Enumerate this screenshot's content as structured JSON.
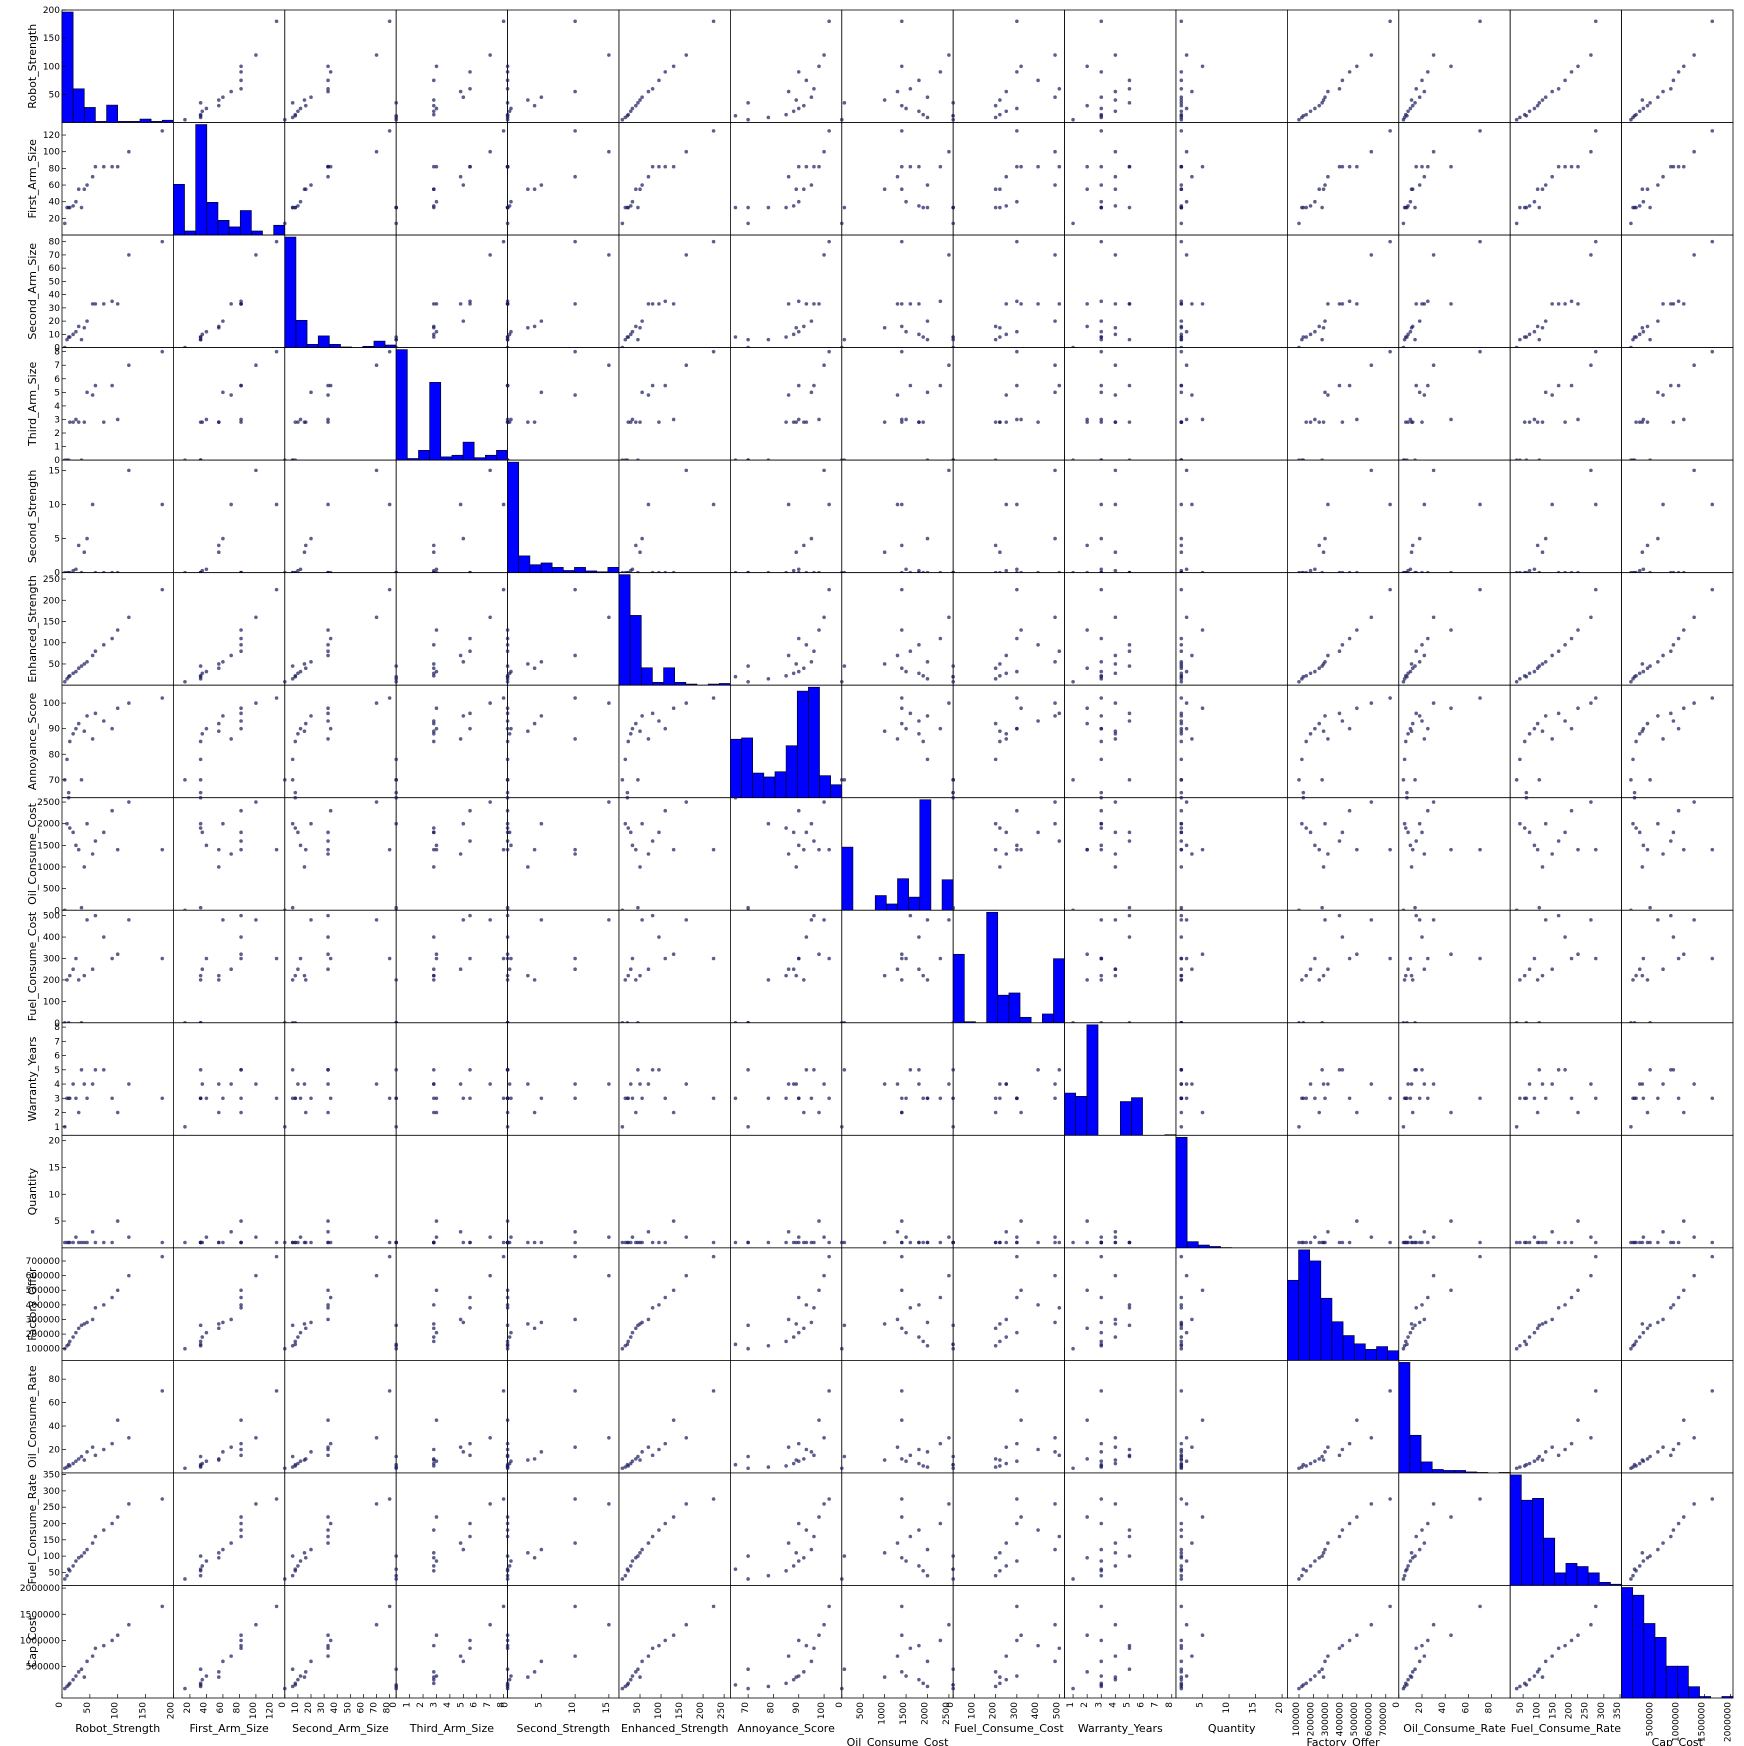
{
  "chart_data": {
    "type": "scatter",
    "subtype": "scatter_matrix",
    "diagonal": "histogram",
    "point_color": "#1a1a5e",
    "bar_color": "#0000ff",
    "variables": [
      {
        "name": "Robot_Strength",
        "range": [
          0,
          200
        ],
        "yticks": [
          50,
          100,
          150,
          200
        ],
        "xticks": [
          0,
          50,
          100,
          150,
          200
        ]
      },
      {
        "name": "First_Arm_Size",
        "range": [
          0,
          135
        ],
        "yticks": [
          20,
          40,
          60,
          80,
          100,
          120
        ],
        "xticks": [
          20,
          40,
          60,
          80,
          100,
          120
        ]
      },
      {
        "name": "Second_Arm_Size",
        "range": [
          0,
          85
        ],
        "yticks": [
          0,
          10,
          20,
          30,
          40,
          50,
          60,
          70,
          80
        ],
        "xticks": [
          0,
          10,
          20,
          30,
          40,
          50,
          60,
          70,
          80
        ]
      },
      {
        "name": "Third_Arm_Size",
        "range": [
          0,
          8.3
        ],
        "yticks": [
          0,
          1,
          2,
          3,
          4,
          5,
          6,
          7,
          8
        ],
        "xticks": [
          0,
          1,
          2,
          3,
          4,
          5,
          6,
          7,
          8
        ]
      },
      {
        "name": "Second_Strength",
        "range": [
          0,
          16.5
        ],
        "yticks": [
          0,
          5,
          10,
          15
        ],
        "xticks": [
          0,
          5,
          10,
          15
        ]
      },
      {
        "name": "Enhanced_Strength",
        "range": [
          0,
          265
        ],
        "yticks": [
          50,
          100,
          150,
          200,
          250
        ],
        "xticks": [
          50,
          100,
          150,
          200,
          250
        ]
      },
      {
        "name": "Annoyance_Score",
        "range": [
          63,
          107
        ],
        "yticks": [
          70,
          80,
          90,
          100
        ],
        "xticks": [
          70,
          80,
          90,
          100
        ]
      },
      {
        "name": "Oil_Consume_Cost",
        "range": [
          0,
          2600
        ],
        "yticks": [
          0,
          500,
          1000,
          1500,
          2000,
          2500
        ],
        "xticks": [
          0,
          500,
          1000,
          1500,
          2000,
          2500
        ]
      },
      {
        "name": "Fuel_Consume_Cost",
        "range": [
          0,
          525
        ],
        "yticks": [
          0,
          100,
          200,
          300,
          400,
          500
        ],
        "xticks": [
          0,
          100,
          200,
          300,
          400,
          500
        ]
      },
      {
        "name": "Warranty_Years",
        "range": [
          0.4,
          8.3
        ],
        "yticks": [
          1,
          2,
          3,
          4,
          5,
          6,
          7,
          8
        ],
        "xticks": [
          1,
          2,
          3,
          4,
          5,
          6,
          7,
          8
        ]
      },
      {
        "name": "Quantity",
        "range": [
          0,
          21
        ],
        "yticks": [
          5,
          10,
          15,
          20
        ],
        "xticks": [
          5,
          10,
          15,
          20
        ]
      },
      {
        "name": "Factory_Offer",
        "range": [
          20000,
          790000
        ],
        "yticks": [
          100000,
          200000,
          300000,
          400000,
          500000,
          600000,
          700000
        ],
        "xticks": [
          100000,
          200000,
          300000,
          400000,
          500000,
          600000,
          700000
        ]
      },
      {
        "name": "Oil_Consume_Rate",
        "range": [
          0,
          96
        ],
        "yticks": [
          20,
          40,
          60,
          80
        ],
        "xticks": [
          0,
          20,
          40,
          60,
          80
        ]
      },
      {
        "name": "Fuel_Consume_Rate",
        "range": [
          10,
          355
        ],
        "yticks": [
          50,
          100,
          150,
          200,
          250,
          300,
          350
        ],
        "xticks": [
          50,
          100,
          150,
          200,
          250,
          300,
          350
        ]
      },
      {
        "name": "Cap_Cost",
        "range": [
          -100000,
          2050000
        ],
        "yticks": [
          500000,
          1000000,
          1500000,
          2000000
        ],
        "xticks": [
          500000,
          1000000,
          1500000,
          2000000
        ]
      }
    ],
    "histograms": [
      {
        "name": "Robot_Strength",
        "bins": [
          0,
          20,
          40,
          60,
          80,
          100,
          120,
          140,
          160,
          180,
          200
        ],
        "counts": [
          190,
          58,
          26,
          2,
          30,
          2,
          2,
          6,
          2,
          4
        ]
      },
      {
        "name": "First_Arm_Size",
        "bins": [
          0,
          12.5,
          25,
          37.5,
          50,
          62.5,
          75,
          87.5,
          100,
          112.5,
          125
        ],
        "counts": [
          62,
          5,
          135,
          40,
          18,
          10,
          30,
          5,
          0,
          12
        ]
      },
      {
        "name": "Second_Arm_Size",
        "bins": [
          0,
          8,
          16,
          24,
          32,
          40,
          48,
          56,
          64,
          72,
          80
        ],
        "counts": [
          170,
          42,
          5,
          18,
          5,
          1,
          0,
          2,
          10,
          4
        ]
      },
      {
        "name": "Third_Arm_Size",
        "bins": [
          0,
          0.8,
          1.6,
          2.4,
          3.2,
          4.0,
          4.8,
          5.6,
          6.4,
          7.2,
          8.0
        ],
        "counts": [
          135,
          2,
          12,
          95,
          4,
          6,
          22,
          3,
          6,
          12
        ]
      },
      {
        "name": "Second_Strength",
        "bins": [
          0,
          1.6,
          3.2,
          4.8,
          6.4,
          8,
          9.6,
          11.2,
          12.8,
          14.4,
          16
        ],
        "counts": [
          250,
          38,
          18,
          22,
          12,
          5,
          12,
          4,
          2,
          12
        ]
      },
      {
        "name": "Enhanced_Strength",
        "bins": [
          0,
          26,
          52,
          78,
          104,
          130,
          156,
          182,
          208,
          234,
          260
        ],
        "counts": [
          190,
          120,
          30,
          5,
          30,
          5,
          2,
          0,
          2,
          3
        ]
      },
      {
        "name": "Annoyance_Score",
        "bins": [
          63,
          67.4,
          71.8,
          76.2,
          80.6,
          85,
          89.4,
          93.8,
          98.2,
          102.6,
          107
        ],
        "counts": [
          45,
          46,
          19,
          16,
          20,
          40,
          82,
          85,
          17,
          10
        ]
      },
      {
        "name": "Oil_Consume_Cost",
        "bins": [
          0,
          260,
          520,
          780,
          1040,
          1300,
          1560,
          1820,
          2080,
          2340,
          2600
        ],
        "counts": [
          120,
          0,
          0,
          28,
          12,
          60,
          25,
          210,
          0,
          58
        ]
      },
      {
        "name": "Fuel_Consume_Cost",
        "bins": [
          0,
          52.5,
          105,
          157.5,
          210,
          262.5,
          315,
          367.5,
          420,
          472.5,
          525
        ],
        "counts": [
          62,
          1,
          0,
          100,
          25,
          27,
          5,
          0,
          8,
          58
        ]
      },
      {
        "name": "Warranty_Years",
        "bins": [
          0.4,
          1.19,
          1.98,
          2.77,
          3.56,
          4.35,
          5.14,
          5.93,
          6.72,
          7.51,
          8.3
        ],
        "counts": [
          65,
          60,
          170,
          0,
          0,
          52,
          58,
          0,
          0,
          1
        ]
      },
      {
        "name": "Quantity",
        "bins": [
          0,
          2.1,
          4.2,
          6.3,
          8.4,
          10.5,
          12.6,
          14.7,
          16.8,
          18.9,
          21
        ],
        "counts": [
          390,
          22,
          10,
          5,
          1,
          0,
          0,
          0,
          0,
          0
        ]
      },
      {
        "name": "Factory_Offer",
        "bins": [
          80000,
          145000,
          210000,
          275000,
          340000,
          405000,
          470000,
          535000,
          600000,
          665000,
          730000
        ],
        "counts": [
          58,
          80,
          72,
          45,
          28,
          18,
          12,
          8,
          10,
          7
        ]
      },
      {
        "name": "Oil_Consume_Rate",
        "bins": [
          0,
          9.6,
          19.2,
          28.8,
          38.4,
          48,
          57.6,
          67.2,
          76.8,
          86.4,
          96
        ],
        "counts": [
          220,
          75,
          22,
          7,
          5,
          5,
          2,
          1,
          0,
          1
        ]
      },
      {
        "name": "Fuel_Consume_Rate",
        "bins": [
          20,
          53,
          86,
          119,
          152,
          185,
          218,
          251,
          284,
          317,
          350
        ],
        "counts": [
          175,
          135,
          138,
          75,
          20,
          35,
          30,
          20,
          5,
          2
        ]
      },
      {
        "name": "Cap_Cost",
        "bins": [
          0,
          200000,
          400000,
          600000,
          800000,
          1000000,
          1200000,
          1400000,
          1600000,
          1800000,
          2000000
        ],
        "counts": [
          215,
          200,
          145,
          118,
          62,
          62,
          22,
          3,
          0,
          3
        ]
      }
    ],
    "points": [
      {
        "Robot_Strength": 9,
        "First_Arm_Size": 33,
        "Second_Arm_Size": 6,
        "Third_Arm_Size": 0,
        "Second_Strength": 0,
        "Enhanced_Strength": 15,
        "Annoyance_Score": 78,
        "Oil_Consume_Cost": 2000,
        "Fuel_Consume_Cost": 200,
        "Warranty_Years": 3,
        "Quantity": 1,
        "Factory_Offer": 120000,
        "Oil_Consume_Rate": 5,
        "Fuel_Consume_Rate": 40,
        "Cap_Cost": 120000
      },
      {
        "Robot_Strength": 14,
        "First_Arm_Size": 33,
        "Second_Arm_Size": 8,
        "Third_Arm_Size": 2.8,
        "Second_Strength": 0,
        "Enhanced_Strength": 22,
        "Annoyance_Score": 85,
        "Oil_Consume_Cost": 1900,
        "Fuel_Consume_Cost": 220,
        "Warranty_Years": 3,
        "Quantity": 1,
        "Factory_Offer": 150000,
        "Oil_Consume_Rate": 6,
        "Fuel_Consume_Rate": 55,
        "Cap_Cost": 180000
      },
      {
        "Robot_Strength": 20,
        "First_Arm_Size": 35,
        "Second_Arm_Size": 10,
        "Third_Arm_Size": 2.8,
        "Second_Strength": 0.3,
        "Enhanced_Strength": 28,
        "Annoyance_Score": 88,
        "Oil_Consume_Cost": 1800,
        "Fuel_Consume_Cost": 250,
        "Warranty_Years": 4,
        "Quantity": 1,
        "Factory_Offer": 180000,
        "Oil_Consume_Rate": 8,
        "Fuel_Consume_Rate": 70,
        "Cap_Cost": 250000
      },
      {
        "Robot_Strength": 25,
        "First_Arm_Size": 40,
        "Second_Arm_Size": 12,
        "Third_Arm_Size": 3,
        "Second_Strength": 0.5,
        "Enhanced_Strength": 32,
        "Annoyance_Score": 90,
        "Oil_Consume_Cost": 1500,
        "Fuel_Consume_Cost": 300,
        "Warranty_Years": 3,
        "Quantity": 2,
        "Factory_Offer": 210000,
        "Oil_Consume_Rate": 10,
        "Fuel_Consume_Rate": 85,
        "Cap_Cost": 320000
      },
      {
        "Robot_Strength": 30,
        "First_Arm_Size": 55,
        "Second_Arm_Size": 16,
        "Third_Arm_Size": 2.8,
        "Second_Strength": 4,
        "Enhanced_Strength": 40,
        "Annoyance_Score": 92,
        "Oil_Consume_Cost": 1400,
        "Fuel_Consume_Cost": 200,
        "Warranty_Years": 2,
        "Quantity": 1,
        "Factory_Offer": 240000,
        "Oil_Consume_Rate": 12,
        "Fuel_Consume_Rate": 95,
        "Cap_Cost": 400000
      },
      {
        "Robot_Strength": 35,
        "First_Arm_Size": 33,
        "Second_Arm_Size": 6,
        "Third_Arm_Size": 0,
        "Second_Strength": 0,
        "Enhanced_Strength": 45,
        "Annoyance_Score": 70,
        "Oil_Consume_Cost": 60,
        "Fuel_Consume_Cost": 0,
        "Warranty_Years": 5,
        "Quantity": 1,
        "Factory_Offer": 260000,
        "Oil_Consume_Rate": 14,
        "Fuel_Consume_Rate": 100,
        "Cap_Cost": 450000
      },
      {
        "Robot_Strength": 45,
        "First_Arm_Size": 60,
        "Second_Arm_Size": 20,
        "Third_Arm_Size": 5,
        "Second_Strength": 5,
        "Enhanced_Strength": 55,
        "Annoyance_Score": 95,
        "Oil_Consume_Cost": 2000,
        "Fuel_Consume_Cost": 480,
        "Warranty_Years": 3,
        "Quantity": 1,
        "Factory_Offer": 280000,
        "Oil_Consume_Rate": 18,
        "Fuel_Consume_Rate": 120,
        "Cap_Cost": 600000
      },
      {
        "Robot_Strength": 55,
        "First_Arm_Size": 70,
        "Second_Arm_Size": 33,
        "Third_Arm_Size": 4.8,
        "Second_Strength": 10,
        "Enhanced_Strength": 70,
        "Annoyance_Score": 86,
        "Oil_Consume_Cost": 1300,
        "Fuel_Consume_Cost": 250,
        "Warranty_Years": 4,
        "Quantity": 3,
        "Factory_Offer": 300000,
        "Oil_Consume_Rate": 22,
        "Fuel_Consume_Rate": 140,
        "Cap_Cost": 700000
      },
      {
        "Robot_Strength": 60,
        "First_Arm_Size": 82,
        "Second_Arm_Size": 33,
        "Third_Arm_Size": 5.5,
        "Second_Strength": 0,
        "Enhanced_Strength": 80,
        "Annoyance_Score": 96,
        "Oil_Consume_Cost": 1600,
        "Fuel_Consume_Cost": 500,
        "Warranty_Years": 5,
        "Quantity": 1,
        "Factory_Offer": 380000,
        "Oil_Consume_Rate": 15,
        "Fuel_Consume_Rate": 160,
        "Cap_Cost": 850000
      },
      {
        "Robot_Strength": 90,
        "First_Arm_Size": 82,
        "Second_Arm_Size": 35,
        "Third_Arm_Size": 5.5,
        "Second_Strength": 0,
        "Enhanced_Strength": 110,
        "Annoyance_Score": 90,
        "Oil_Consume_Cost": 2300,
        "Fuel_Consume_Cost": 300,
        "Warranty_Years": 3,
        "Quantity": 1,
        "Factory_Offer": 450000,
        "Oil_Consume_Rate": 25,
        "Fuel_Consume_Rate": 200,
        "Cap_Cost": 1000000
      },
      {
        "Robot_Strength": 100,
        "First_Arm_Size": 82,
        "Second_Arm_Size": 33,
        "Third_Arm_Size": 3,
        "Second_Strength": 0,
        "Enhanced_Strength": 130,
        "Annoyance_Score": 98,
        "Oil_Consume_Cost": 1400,
        "Fuel_Consume_Cost": 320,
        "Warranty_Years": 2,
        "Quantity": 5,
        "Factory_Offer": 500000,
        "Oil_Consume_Rate": 45,
        "Fuel_Consume_Rate": 220,
        "Cap_Cost": 1100000
      },
      {
        "Robot_Strength": 120,
        "First_Arm_Size": 100,
        "Second_Arm_Size": 70,
        "Third_Arm_Size": 7,
        "Second_Strength": 15,
        "Enhanced_Strength": 160,
        "Annoyance_Score": 100,
        "Oil_Consume_Cost": 2500,
        "Fuel_Consume_Cost": 480,
        "Warranty_Years": 4,
        "Quantity": 2,
        "Factory_Offer": 600000,
        "Oil_Consume_Rate": 30,
        "Fuel_Consume_Rate": 260,
        "Cap_Cost": 1300000
      },
      {
        "Robot_Strength": 180,
        "First_Arm_Size": 125,
        "Second_Arm_Size": 80,
        "Third_Arm_Size": 8,
        "Second_Strength": 10,
        "Enhanced_Strength": 225,
        "Annoyance_Score": 102,
        "Oil_Consume_Cost": 1400,
        "Fuel_Consume_Cost": 300,
        "Warranty_Years": 3,
        "Quantity": 1,
        "Factory_Offer": 730000,
        "Oil_Consume_Rate": 70,
        "Fuel_Consume_Rate": 275,
        "Cap_Cost": 1650000
      },
      {
        "Robot_Strength": 5,
        "First_Arm_Size": 14,
        "Second_Arm_Size": 0,
        "Third_Arm_Size": 0,
        "Second_Strength": 0,
        "Enhanced_Strength": 8,
        "Annoyance_Score": 70,
        "Oil_Consume_Cost": 0,
        "Fuel_Consume_Cost": 0,
        "Warranty_Years": 1,
        "Quantity": 1,
        "Factory_Offer": 100000,
        "Oil_Consume_Rate": 4,
        "Fuel_Consume_Rate": 30,
        "Cap_Cost": 80000
      },
      {
        "Robot_Strength": 12,
        "First_Arm_Size": 33,
        "Second_Arm_Size": 8,
        "Third_Arm_Size": 0,
        "Second_Strength": 0,
        "Enhanced_Strength": 20,
        "Annoyance_Score": 65,
        "Oil_Consume_Cost": 2600,
        "Fuel_Consume_Cost": 0,
        "Warranty_Years": 3,
        "Quantity": 1,
        "Factory_Offer": 130000,
        "Oil_Consume_Rate": 7,
        "Fuel_Consume_Rate": 60,
        "Cap_Cost": 150000
      },
      {
        "Robot_Strength": 40,
        "First_Arm_Size": 55,
        "Second_Arm_Size": 15,
        "Third_Arm_Size": 2.8,
        "Second_Strength": 3,
        "Enhanced_Strength": 50,
        "Annoyance_Score": 89,
        "Oil_Consume_Cost": 1000,
        "Fuel_Consume_Cost": 220,
        "Warranty_Years": 4,
        "Quantity": 1,
        "Factory_Offer": 270000,
        "Oil_Consume_Rate": 11,
        "Fuel_Consume_Rate": 110,
        "Cap_Cost": 300000
      },
      {
        "Robot_Strength": 75,
        "First_Arm_Size": 82,
        "Second_Arm_Size": 33,
        "Third_Arm_Size": 2.8,
        "Second_Strength": 0,
        "Enhanced_Strength": 95,
        "Annoyance_Score": 93,
        "Oil_Consume_Cost": 1800,
        "Fuel_Consume_Cost": 400,
        "Warranty_Years": 5,
        "Quantity": 1,
        "Factory_Offer": 400000,
        "Oil_Consume_Rate": 20,
        "Fuel_Consume_Rate": 180,
        "Cap_Cost": 900000
      }
    ]
  }
}
